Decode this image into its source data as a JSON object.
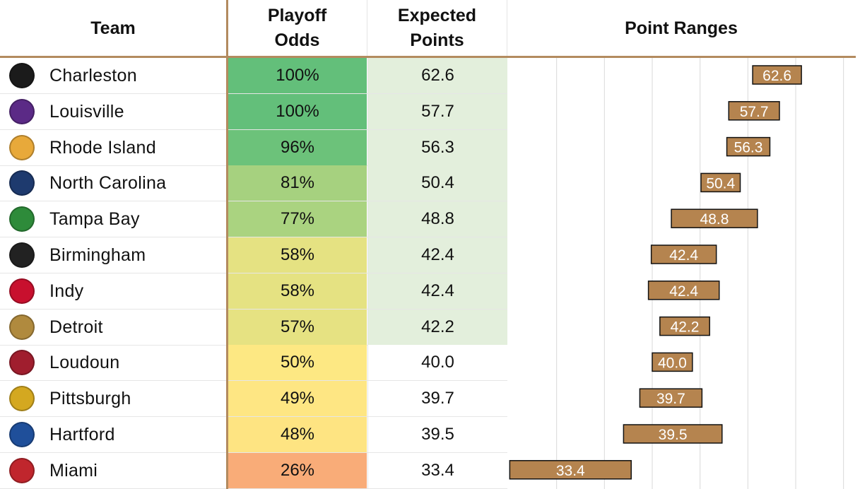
{
  "header": {
    "team": "Team",
    "odds_line1": "Playoff",
    "odds_line2": "Odds",
    "exp_line1": "Expected",
    "exp_line2": "Points",
    "range": "Point Ranges"
  },
  "colors": {
    "accent_line": "#b38b5f",
    "range_bar": "#b5844f",
    "range_bar_border": "#111111",
    "expected_highlight": "#e3efdc"
  },
  "rows": [
    {
      "team": "Charleston",
      "odds": "100%",
      "expected": "62.6",
      "icon": "charleston-battery-logo",
      "logo_color": "#1b1b1b",
      "odds_color": "#63bf7a",
      "exp_bg": "#e3efdc"
    },
    {
      "team": "Louisville",
      "odds": "100%",
      "expected": "57.7",
      "icon": "louisville-city-logo",
      "logo_color": "#5b2a86",
      "odds_color": "#63bf7a",
      "exp_bg": "#e3efdc"
    },
    {
      "team": "Rhode Island",
      "odds": "96%",
      "expected": "56.3",
      "icon": "rhode-island-fc-logo",
      "logo_color": "#e8a93a",
      "odds_color": "#6cc27a",
      "exp_bg": "#e3efdc"
    },
    {
      "team": "North Carolina",
      "odds": "81%",
      "expected": "50.4",
      "icon": "north-carolina-fc-logo",
      "logo_color": "#1e3a6e",
      "odds_color": "#a6d17f",
      "exp_bg": "#e3efdc"
    },
    {
      "team": "Tampa Bay",
      "odds": "77%",
      "expected": "48.8",
      "icon": "tampa-bay-rowdies-logo",
      "logo_color": "#2e8b3a",
      "odds_color": "#aad380",
      "exp_bg": "#e3efdc"
    },
    {
      "team": "Birmingham",
      "odds": "58%",
      "expected": "42.4",
      "icon": "birmingham-legion-logo",
      "logo_color": "#222222",
      "odds_color": "#e5e282",
      "exp_bg": "#e3efdc"
    },
    {
      "team": "Indy",
      "odds": "58%",
      "expected": "42.4",
      "icon": "indy-eleven-logo",
      "logo_color": "#c8102e",
      "odds_color": "#e5e282",
      "exp_bg": "#e3efdc"
    },
    {
      "team": "Detroit",
      "odds": "57%",
      "expected": "42.2",
      "icon": "detroit-city-fc-logo",
      "logo_color": "#b08a3e",
      "odds_color": "#e6e282",
      "exp_bg": "#e3efdc"
    },
    {
      "team": "Loudoun",
      "odds": "50%",
      "expected": "40.0",
      "icon": "loudoun-united-logo",
      "logo_color": "#a01e2e",
      "odds_color": "#fde883",
      "exp_bg": "#ffffff"
    },
    {
      "team": "Pittsburgh",
      "odds": "49%",
      "expected": "39.7",
      "icon": "pittsburgh-riverhounds-logo",
      "logo_color": "#d4a820",
      "odds_color": "#fee683",
      "exp_bg": "#ffffff"
    },
    {
      "team": "Hartford",
      "odds": "48%",
      "expected": "39.5",
      "icon": "hartford-athletic-logo",
      "logo_color": "#1f4f9a",
      "odds_color": "#fee482",
      "exp_bg": "#ffffff"
    },
    {
      "team": "Miami",
      "odds": "26%",
      "expected": "33.4",
      "icon": "miami-fc-logo",
      "logo_color": "#c0262d",
      "odds_color": "#f9ac78",
      "exp_bg": "#ffffff"
    }
  ],
  "chart_data": {
    "type": "range-bar",
    "title": "Point Ranges",
    "xlim": [
      30,
      60
    ],
    "grid": true,
    "categories": [
      "Charleston",
      "Louisville",
      "Rhode Island",
      "North Carolina",
      "Tampa Bay",
      "Birmingham",
      "Indy",
      "Detroit",
      "Loudoun",
      "Pittsburgh",
      "Hartford",
      "Miami"
    ],
    "series": [
      {
        "low": 55.5,
        "high": 60.6,
        "label": "62.6"
      },
      {
        "low": 53.0,
        "high": 58.3,
        "label": "57.7"
      },
      {
        "low": 52.8,
        "high": 57.3,
        "label": "56.3"
      },
      {
        "low": 50.1,
        "high": 54.2,
        "label": "50.4"
      },
      {
        "low": 47.0,
        "high": 56.0,
        "label": "48.8"
      },
      {
        "low": 44.9,
        "high": 51.7,
        "label": "42.4"
      },
      {
        "low": 44.6,
        "high": 52.0,
        "label": "42.4"
      },
      {
        "low": 45.8,
        "high": 51.0,
        "label": "42.2"
      },
      {
        "low": 45.0,
        "high": 49.2,
        "label": "40.0"
      },
      {
        "low": 43.7,
        "high": 50.2,
        "label": "39.7"
      },
      {
        "low": 42.0,
        "high": 52.3,
        "label": "39.5"
      },
      {
        "low": 30.1,
        "high": 42.8,
        "label": "33.4"
      }
    ]
  }
}
